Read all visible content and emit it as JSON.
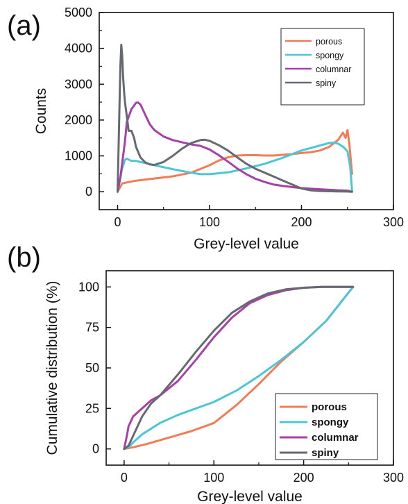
{
  "colors": {
    "porous": "#f17c55",
    "spongy": "#4cc6d6",
    "columnar": "#a840a8",
    "spiny": "#666a70",
    "axis": "#111111"
  },
  "chart_data": [
    {
      "panel_label": "(a)",
      "type": "line",
      "xlabel": "Grey-level value",
      "ylabel": "Counts",
      "xlim": [
        -20,
        300
      ],
      "ylim": [
        -500,
        5000
      ],
      "xticks": [
        "0",
        "100",
        "200",
        "300"
      ],
      "yticks": [
        "0",
        "1000",
        "2000",
        "3000",
        "4000",
        "5000"
      ],
      "grid": false,
      "legend_position": "top-right",
      "series": [
        {
          "name": "porous",
          "x": [
            0,
            5,
            10,
            20,
            40,
            60,
            80,
            100,
            110,
            120,
            130,
            140,
            150,
            160,
            170,
            180,
            190,
            200,
            210,
            220,
            230,
            240,
            245,
            248,
            250,
            252,
            255
          ],
          "y": [
            0,
            230,
            260,
            310,
            370,
            430,
            530,
            740,
            870,
            960,
            1010,
            1020,
            1020,
            1010,
            1010,
            1030,
            1050,
            1080,
            1100,
            1150,
            1250,
            1450,
            1650,
            1500,
            1720,
            1350,
            500
          ]
        },
        {
          "name": "spongy",
          "x": [
            0,
            5,
            8,
            10,
            15,
            20,
            30,
            40,
            60,
            80,
            90,
            100,
            120,
            140,
            160,
            180,
            200,
            210,
            220,
            230,
            235,
            240,
            245,
            250,
            253,
            255
          ],
          "y": [
            0,
            650,
            890,
            920,
            860,
            860,
            800,
            740,
            630,
            530,
            490,
            490,
            540,
            650,
            780,
            950,
            1150,
            1220,
            1290,
            1360,
            1370,
            1340,
            1260,
            1130,
            700,
            30
          ]
        },
        {
          "name": "columnar",
          "x": [
            0,
            3,
            5,
            8,
            10,
            15,
            20,
            22,
            25,
            30,
            35,
            40,
            50,
            60,
            70,
            80,
            90,
            100,
            110,
            120,
            130,
            140,
            150,
            160,
            170,
            180,
            200,
            220,
            240,
            250,
            255
          ],
          "y": [
            0,
            400,
            800,
            1400,
            1950,
            2300,
            2480,
            2490,
            2430,
            2150,
            1880,
            1720,
            1540,
            1440,
            1380,
            1320,
            1280,
            1180,
            1020,
            840,
            650,
            490,
            360,
            270,
            200,
            160,
            100,
            70,
            40,
            30,
            0
          ]
        },
        {
          "name": "spiny",
          "x": [
            0,
            2,
            3,
            4,
            5,
            6,
            7,
            8,
            10,
            12,
            15,
            18,
            20,
            25,
            30,
            35,
            40,
            50,
            60,
            70,
            80,
            90,
            95,
            100,
            110,
            120,
            130,
            140,
            150,
            160,
            170,
            180,
            190,
            200,
            210,
            220,
            240,
            250,
            255
          ],
          "y": [
            0,
            2400,
            3500,
            4100,
            3800,
            3200,
            2800,
            2500,
            2100,
            1700,
            1700,
            1500,
            1250,
            950,
            820,
            760,
            750,
            830,
            1000,
            1200,
            1360,
            1440,
            1450,
            1420,
            1300,
            1150,
            960,
            780,
            640,
            530,
            420,
            310,
            200,
            90,
            40,
            20,
            10,
            5,
            0
          ]
        }
      ]
    },
    {
      "panel_label": "(b)",
      "type": "line",
      "xlabel": "Grey-level value",
      "ylabel": "Cumulative distribution (%)",
      "xlim": [
        -20,
        300
      ],
      "ylim": [
        -10,
        110
      ],
      "xticks": [
        "0",
        "100",
        "200",
        "300"
      ],
      "yticks": [
        "0",
        "25",
        "50",
        "75",
        "100"
      ],
      "grid": false,
      "legend_position": "bottom-right",
      "series": [
        {
          "name": "porous",
          "x": [
            0,
            10,
            25,
            50,
            75,
            100,
            125,
            150,
            175,
            200,
            225,
            255
          ],
          "y": [
            0,
            1,
            3,
            7,
            11,
            16,
            27,
            40,
            54,
            66,
            79,
            100
          ]
        },
        {
          "name": "spongy",
          "x": [
            0,
            5,
            10,
            20,
            40,
            60,
            80,
            100,
            125,
            150,
            175,
            200,
            225,
            255
          ],
          "y": [
            0,
            1,
            4,
            9,
            16,
            21,
            25,
            29,
            36,
            45,
            55,
            66,
            79,
            100
          ]
        },
        {
          "name": "columnar",
          "x": [
            0,
            3,
            5,
            10,
            20,
            30,
            40,
            60,
            80,
            100,
            120,
            140,
            160,
            180,
            200,
            220,
            255
          ],
          "y": [
            0,
            8,
            14,
            20,
            25,
            30,
            33,
            42,
            55,
            69,
            81,
            90,
            95,
            98,
            99.5,
            100,
            100
          ]
        },
        {
          "name": "spiny",
          "x": [
            0,
            5,
            10,
            20,
            30,
            40,
            60,
            80,
            100,
            120,
            140,
            160,
            180,
            200,
            220,
            255
          ],
          "y": [
            0,
            2,
            8,
            20,
            28,
            33,
            46,
            60,
            73,
            84,
            91,
            96,
            98.5,
            99.5,
            100,
            100
          ]
        }
      ]
    }
  ]
}
